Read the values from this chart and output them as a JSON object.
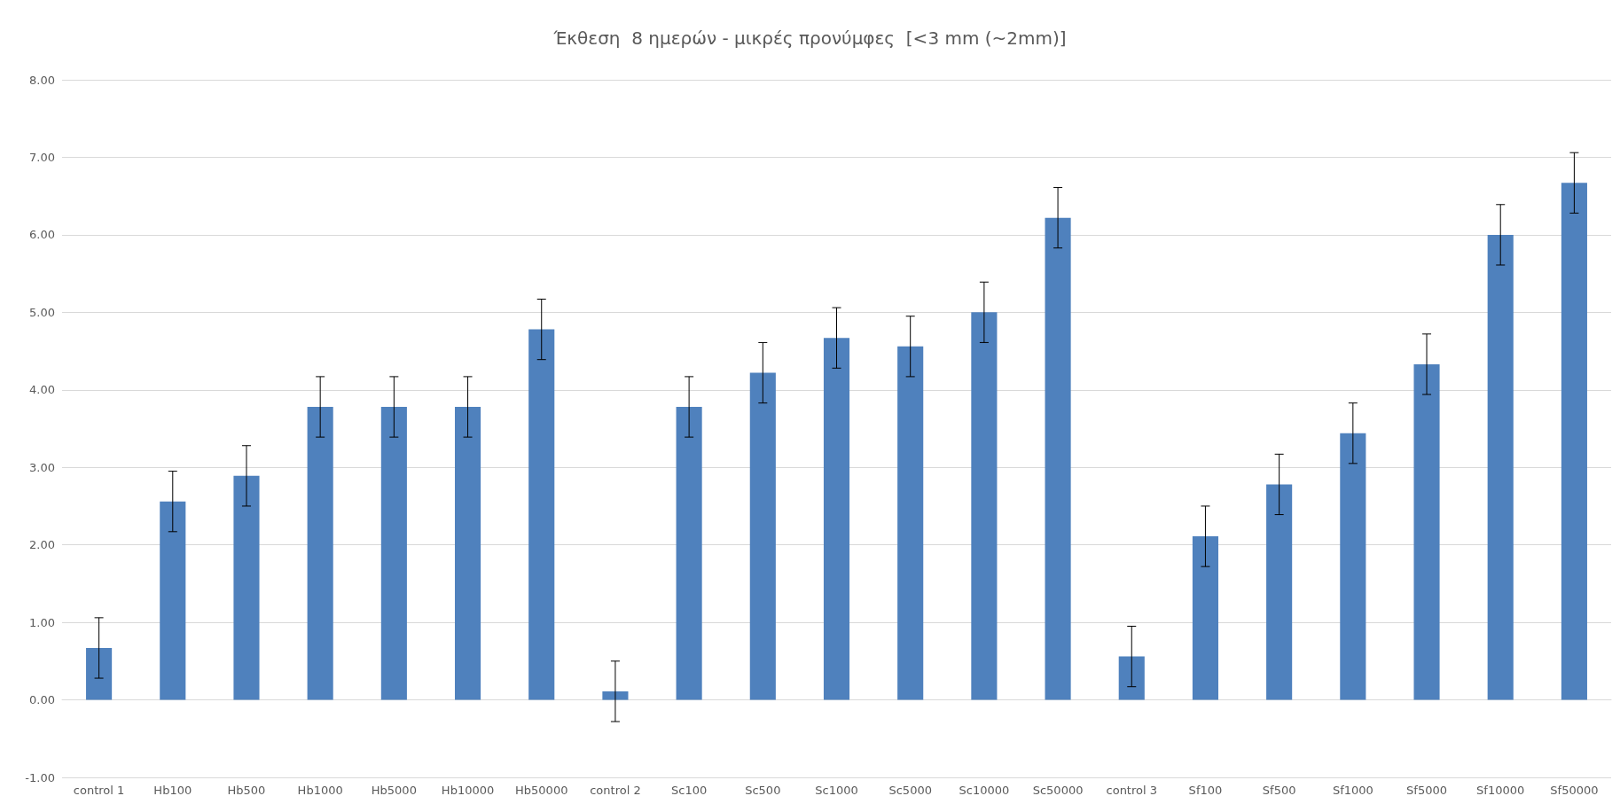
{
  "chart_data": {
    "type": "bar",
    "title": "Έκθεση  8 ημερών - μικρές προνύμφες  [<3 mm (~2mm)]",
    "categories": [
      "control 1",
      "Hb100",
      "Hb500",
      "Hb1000",
      "Hb5000",
      "Hb10000",
      "Hb50000",
      "control 2",
      "Sc100",
      "Sc500",
      "Sc1000",
      "Sc5000",
      "Sc10000",
      "Sc50000",
      "control 3",
      "Sf100",
      "Sf500",
      "Sf1000",
      "Sf5000",
      "Sf10000",
      "Sf50000"
    ],
    "values": [
      0.67,
      2.56,
      2.89,
      3.78,
      3.78,
      3.78,
      4.78,
      0.11,
      3.78,
      4.22,
      4.67,
      4.56,
      5.0,
      6.22,
      0.56,
      2.11,
      2.78,
      3.44,
      4.33,
      6.0,
      6.67
    ],
    "errors": [
      0.39,
      0.39,
      0.39,
      0.39,
      0.39,
      0.39,
      0.39,
      0.39,
      0.39,
      0.39,
      0.39,
      0.39,
      0.39,
      0.39,
      0.39,
      0.39,
      0.39,
      0.39,
      0.39,
      0.39,
      0.39
    ],
    "color": "#4f81bd",
    "ylim": [
      -1,
      8
    ],
    "yticks": [
      {
        "value": -1,
        "label": "-1.00"
      },
      {
        "value": 0,
        "label": "0.00"
      },
      {
        "value": 1,
        "label": "1.00"
      },
      {
        "value": 2,
        "label": "2.00"
      },
      {
        "value": 3,
        "label": "3.00"
      },
      {
        "value": 4,
        "label": "4.00"
      },
      {
        "value": 5,
        "label": "5.00"
      },
      {
        "value": 6,
        "label": "6.00"
      },
      {
        "value": 7,
        "label": "7.00"
      },
      {
        "value": 8,
        "label": "8.00"
      }
    ],
    "grid": "y"
  }
}
